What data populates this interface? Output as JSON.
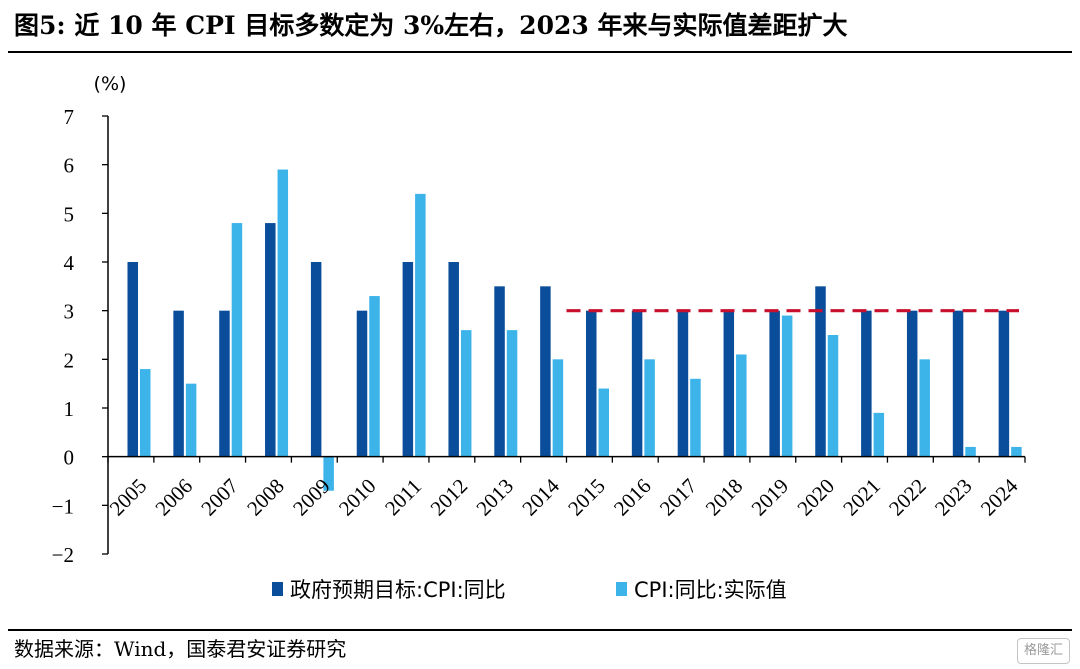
{
  "figure": {
    "title": "图5:  近 10 年 CPI 目标多数定为 3%左右，2023 年来与实际值差距扩大",
    "source": "数据来源：Wind，国泰君安证券研究",
    "watermark": "格隆汇"
  },
  "chart_data": {
    "type": "bar",
    "title": "",
    "ylabel": "(%)",
    "xlabel": "",
    "ylim": [
      -2,
      7
    ],
    "yticks": [
      -2,
      -1,
      0,
      1,
      2,
      3,
      4,
      5,
      6,
      7
    ],
    "categories": [
      "2005",
      "2006",
      "2007",
      "2008",
      "2009",
      "2010",
      "2011",
      "2012",
      "2013",
      "2014",
      "2015",
      "2016",
      "2017",
      "2018",
      "2019",
      "2020",
      "2021",
      "2022",
      "2023",
      "2024"
    ],
    "series": [
      {
        "name": "政府预期目标:CPI:同比",
        "color": "#0a4e9b",
        "values": [
          4,
          3,
          3,
          4.8,
          4,
          3,
          4,
          4,
          3.5,
          3.5,
          3,
          3,
          3,
          3,
          3,
          3.5,
          3,
          3,
          3,
          3
        ]
      },
      {
        "name": "CPI:同比:实际值",
        "color": "#3cb4ea",
        "values": [
          1.8,
          1.5,
          4.8,
          5.9,
          -0.7,
          3.3,
          5.4,
          2.6,
          2.6,
          2.0,
          1.4,
          2.0,
          1.6,
          2.1,
          2.9,
          2.5,
          0.9,
          2.0,
          0.2,
          0.2
        ]
      }
    ],
    "reference_line": {
      "y": 3,
      "from": "2015",
      "to": "2024",
      "color": "#c8102e",
      "style": "dashed"
    },
    "grid": false,
    "legend_position": "bottom-center"
  }
}
